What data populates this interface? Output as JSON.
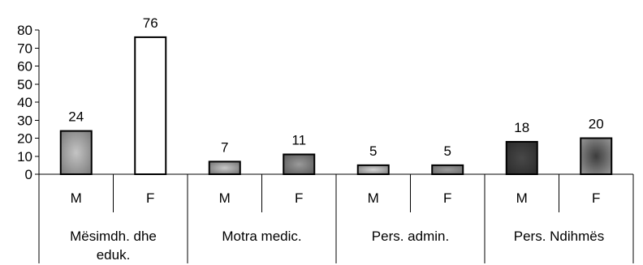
{
  "chart_data": {
    "type": "bar",
    "title": "",
    "xlabel": "",
    "ylabel": "",
    "ylim": [
      0,
      80
    ],
    "yticks": [
      0,
      10,
      20,
      30,
      40,
      50,
      60,
      70,
      80
    ],
    "grid": false,
    "legend": "none",
    "groups": [
      {
        "name": "Mësimdh. dhe eduk.",
        "lines": [
          "Mësimdh. dhe",
          "eduk."
        ]
      },
      {
        "name": "Motra medic.",
        "lines": [
          "Motra medic."
        ]
      },
      {
        "name": "Pers. admin.",
        "lines": [
          "Pers. admin."
        ]
      },
      {
        "name": "Pers. Ndihmës",
        "lines": [
          "Pers. Ndihmës"
        ]
      }
    ],
    "categories": [
      "M",
      "F",
      "M",
      "F",
      "M",
      "F",
      "M",
      "F"
    ],
    "values": [
      24,
      76,
      7,
      11,
      5,
      5,
      18,
      20
    ],
    "bar_styles": [
      {
        "center": "#c4c4c4",
        "edge": "#7a7a7a"
      },
      {
        "center": "#ffffff",
        "edge": "#ffffff"
      },
      {
        "center": "#c8c8c8",
        "edge": "#6e6e6e"
      },
      {
        "center": "#9a9a9a",
        "edge": "#585858"
      },
      {
        "center": "#d4d4d4",
        "edge": "#7a7a7a"
      },
      {
        "center": "#9a9a9a",
        "edge": "#6a6a6a"
      },
      {
        "center": "#484848",
        "edge": "#2a2a2a"
      },
      {
        "center": "#3c3c3c",
        "edge": "#999999"
      }
    ]
  }
}
